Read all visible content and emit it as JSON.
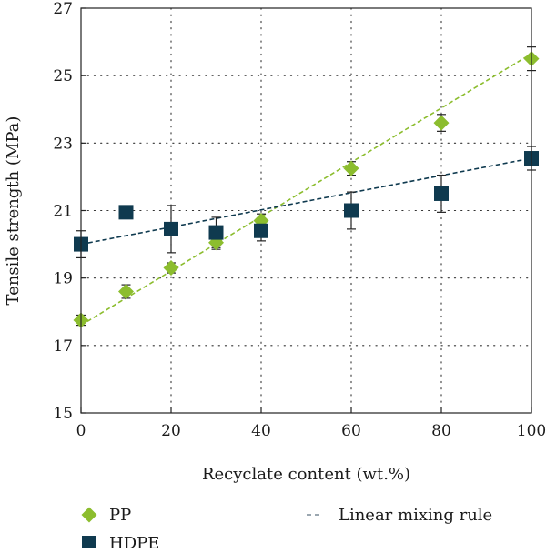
{
  "chart_data": {
    "type": "scatter",
    "xlabel": "Recyclate content (wt.%)",
    "ylabel": "Tensile strength (MPa)",
    "xlim": [
      0,
      100
    ],
    "ylim": [
      15,
      27
    ],
    "x_ticks": [
      0,
      20,
      40,
      60,
      80,
      100
    ],
    "y_ticks": [
      15,
      17,
      19,
      21,
      23,
      25,
      27
    ],
    "grid": "dotted",
    "legend_position": "bottom",
    "colors": {
      "PP": "#8cbd2e",
      "HDPE": "#0f3a4f"
    },
    "series": [
      {
        "name": "PP",
        "marker": "diamond",
        "points": [
          {
            "x": 0,
            "y": 17.75,
            "err": 0.15
          },
          {
            "x": 10,
            "y": 18.6,
            "err": 0.2
          },
          {
            "x": 20,
            "y": 19.3,
            "err": 0.15
          },
          {
            "x": 30,
            "y": 20.05,
            "err": 0.2
          },
          {
            "x": 40,
            "y": 20.7,
            "err": 0.2
          },
          {
            "x": 60,
            "y": 22.25,
            "err": 0.2
          },
          {
            "x": 80,
            "y": 23.6,
            "err": 0.25
          },
          {
            "x": 100,
            "y": 25.5,
            "err": 0.35
          }
        ],
        "fit": {
          "x": [
            0,
            100
          ],
          "y": [
            17.6,
            25.65
          ]
        }
      },
      {
        "name": "HDPE",
        "marker": "square",
        "points": [
          {
            "x": 0,
            "y": 20.0,
            "err": 0.4
          },
          {
            "x": 10,
            "y": 20.95,
            "err": 0.0
          },
          {
            "x": 20,
            "y": 20.45,
            "err": 0.7
          },
          {
            "x": 30,
            "y": 20.35,
            "err": 0.45
          },
          {
            "x": 40,
            "y": 20.4,
            "err": 0.3
          },
          {
            "x": 60,
            "y": 21.0,
            "err": 0.55
          },
          {
            "x": 80,
            "y": 21.5,
            "err": 0.55
          },
          {
            "x": 100,
            "y": 22.55,
            "err": 0.35
          }
        ],
        "fit": {
          "x": [
            0,
            100
          ],
          "y": [
            20.0,
            22.55
          ]
        }
      }
    ],
    "legend": [
      {
        "label": "PP",
        "marker": "diamond"
      },
      {
        "label": "HDPE",
        "marker": "square"
      },
      {
        "label": "Linear mixing rule",
        "marker": "dashed-line"
      }
    ]
  }
}
